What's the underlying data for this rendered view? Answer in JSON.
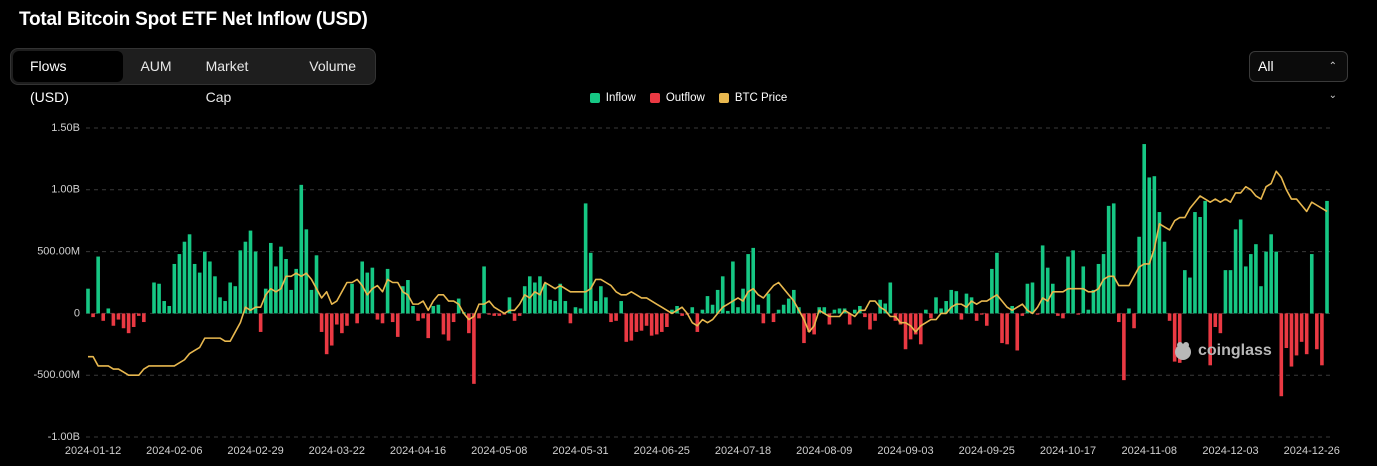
{
  "chart_data": {
    "type": "bar",
    "title": "Total Bitcoin Spot ETF Net Inflow (USD)",
    "categories": [
      null,
      "2024-01-12",
      null,
      null,
      null,
      null,
      null,
      null,
      null,
      null,
      null,
      null,
      null,
      null,
      null,
      null,
      null,
      "2024-02-06",
      null,
      null,
      null,
      null,
      null,
      null,
      null,
      null,
      null,
      null,
      null,
      null,
      null,
      null,
      null,
      "2024-02-29",
      null,
      null,
      null,
      null,
      null,
      null,
      null,
      null,
      null,
      null,
      null,
      null,
      null,
      null,
      null,
      "2024-03-22",
      null,
      null,
      null,
      null,
      null,
      null,
      null,
      null,
      null,
      null,
      null,
      null,
      null,
      null,
      null,
      "2024-04-16",
      null,
      null,
      null,
      null,
      null,
      null,
      null,
      null,
      null,
      null,
      null,
      null,
      null,
      null,
      null,
      "2024-05-08",
      null,
      null,
      null,
      null,
      null,
      null,
      null,
      null,
      null,
      null,
      null,
      null,
      null,
      null,
      null,
      "2024-05-31",
      null,
      null,
      null,
      null,
      null,
      null,
      null,
      null,
      null,
      null,
      null,
      null,
      null,
      null,
      null,
      "2024-06-25",
      null,
      null,
      null,
      null,
      null,
      null,
      null,
      null,
      null,
      null,
      null,
      null,
      null,
      null,
      null,
      "2024-07-18",
      null,
      null,
      null,
      null,
      null,
      null,
      null,
      null,
      null,
      null,
      null,
      null,
      null,
      null,
      null,
      "2024-08-09",
      null,
      null,
      null,
      null,
      null,
      null,
      null,
      null,
      null,
      null,
      null,
      null,
      null,
      null,
      null,
      "2024-09-03",
      null,
      null,
      null,
      null,
      null,
      null,
      null,
      null,
      null,
      null,
      null,
      null,
      null,
      null,
      null,
      "2024-09-25",
      null,
      null,
      null,
      null,
      null,
      null,
      null,
      null,
      null,
      null,
      null,
      null,
      null,
      null,
      null,
      "2024-10-17",
      null,
      null,
      null,
      null,
      null,
      null,
      null,
      null,
      null,
      null,
      null,
      null,
      null,
      null,
      null,
      "2024-11-08",
      null,
      null,
      null,
      null,
      null,
      null,
      null,
      null,
      null,
      null,
      null,
      null,
      null,
      null,
      null,
      "2024-12-03",
      null,
      null,
      null,
      null,
      null,
      null,
      null,
      null,
      null,
      null,
      null,
      null,
      null,
      null,
      null,
      "2024-12-26",
      null,
      null,
      null
    ],
    "series": [
      {
        "name": "Inflow",
        "type": "bar",
        "color": "#16c784",
        "values": [
          200000000.0,
          null,
          460000000.0,
          null,
          40000000.0,
          null,
          null,
          null,
          null,
          null,
          null,
          null,
          0,
          250000000.0,
          240000000.0,
          100000000.0,
          60000000.0,
          400000000.0,
          480000000.0,
          580000000.0,
          640000000.0,
          400000000.0,
          330000000.0,
          500000000.0,
          420000000.0,
          300000000.0,
          130000000.0,
          100000000.0,
          250000000.0,
          220000000.0,
          510000000.0,
          580000000.0,
          670000000.0,
          500000000.0,
          null,
          200000000.0,
          570000000.0,
          380000000.0,
          540000000.0,
          440000000.0,
          190000000.0,
          360000000.0,
          1040000000.0,
          680000000.0,
          190000000.0,
          470000000.0,
          null,
          null,
          null,
          null,
          null,
          null,
          240000000.0,
          null,
          420000000.0,
          330000000.0,
          370000000.0,
          null,
          null,
          360000000.0,
          null,
          null,
          220000000.0,
          270000000.0,
          60000000.0,
          null,
          null,
          null,
          60000000.0,
          70000000.0,
          null,
          null,
          null,
          120000000.0,
          10000000.0,
          null,
          null,
          null,
          380000000.0,
          null,
          null,
          null,
          null,
          130000000.0,
          null,
          null,
          220000000.0,
          300000000.0,
          250000000.0,
          300000000.0,
          240000000.0,
          110000000.0,
          100000000.0,
          240000000.0,
          100000000.0,
          null,
          50000000.0,
          40000000.0,
          890000000.0,
          490000000.0,
          100000000.0,
          220000000.0,
          130000000.0,
          null,
          null,
          100000000.0,
          null,
          null,
          null,
          null,
          null,
          null,
          null,
          null,
          null,
          30000000.0,
          60000000.0,
          null,
          null,
          50000000.0,
          null,
          30000000.0,
          140000000.0,
          70000000.0,
          190000000.0,
          300000000.0,
          20000000.0,
          420000000.0,
          50000000.0,
          200000000.0,
          480000000.0,
          530000000.0,
          70000000.0,
          null,
          160000000.0,
          null,
          30000000.0,
          70000000.0,
          120000000.0,
          190000000.0,
          50000000.0,
          null,
          null,
          null,
          50000000.0,
          50000000.0,
          null,
          30000000.0,
          40000000.0,
          40000000.0,
          null,
          30000000.0,
          60000000.0,
          null,
          null,
          null,
          110000000.0,
          80000000.0,
          250000000.0,
          null,
          null,
          null,
          null,
          null,
          null,
          30000000.0,
          null,
          130000000.0,
          40000000.0,
          100000000.0,
          190000000.0,
          180000000.0,
          null,
          160000000.0,
          130000000.0,
          null,
          null,
          null,
          360000000.0,
          490000000.0,
          null,
          null,
          60000000.0,
          null,
          null,
          240000000.0,
          250000000.0,
          null,
          550000000.0,
          370000000.0,
          240000000.0,
          null,
          null,
          460000000.0,
          510000000.0,
          null,
          380000000.0,
          30000000.0,
          190000000.0,
          400000000.0,
          480000000.0,
          870000000.0,
          890000000.0,
          null,
          null,
          40000000.0,
          null,
          620000000.0,
          1370000000.0,
          1100000000.0,
          1110000000.0,
          820000000.0,
          580000000.0,
          null,
          null,
          null,
          350000000.0,
          290000000.0,
          820000000.0,
          780000000.0,
          910000000.0,
          null,
          null,
          null,
          350000000.0,
          350000000.0,
          680000000.0,
          760000000.0,
          380000000.0,
          480000000.0,
          560000000.0,
          220000000.0,
          500000000.0,
          640000000.0,
          500000000.0,
          null,
          null,
          null,
          null,
          null,
          null,
          480000000.0,
          null,
          null,
          910000000.0
        ]
      },
      {
        "name": "Outflow",
        "type": "bar",
        "color": "#ea3943",
        "values": [
          null,
          -30000000.0,
          null,
          -60000000.0,
          null,
          -100000000.0,
          -50000000.0,
          -120000000.0,
          -160000000.0,
          -110000000.0,
          -20000000.0,
          -70000000.0,
          null,
          null,
          null,
          null,
          null,
          null,
          null,
          null,
          null,
          null,
          null,
          null,
          null,
          null,
          null,
          null,
          null,
          null,
          null,
          null,
          null,
          null,
          -150000000.0,
          null,
          null,
          null,
          null,
          null,
          null,
          null,
          null,
          null,
          null,
          null,
          -150000000.0,
          -330000000.0,
          -260000000.0,
          -90000000.0,
          -160000000.0,
          -100000000.0,
          null,
          -80000000.0,
          null,
          null,
          null,
          -50000000.0,
          -80000000.0,
          null,
          -70000000.0,
          -190000000.0,
          null,
          null,
          null,
          -60000000.0,
          -40000000.0,
          -200000000.0,
          null,
          null,
          -170000000.0,
          -220000000.0,
          -70000000.0,
          null,
          null,
          -160000000.0,
          -570000000.0,
          -40000000.0,
          null,
          -10000000.0,
          -20000000.0,
          -20000000.0,
          -10000000.0,
          null,
          -60000000.0,
          -20000000.0,
          null,
          null,
          null,
          null,
          null,
          null,
          null,
          null,
          null,
          -80000000.0,
          null,
          null,
          null,
          null,
          null,
          null,
          null,
          -70000000.0,
          -60000000.0,
          null,
          -230000000.0,
          -220000000.0,
          -150000000.0,
          -140000000.0,
          -100000000.0,
          -180000000.0,
          -170000000.0,
          -150000000.0,
          -110000000.0,
          null,
          null,
          -20000000.0,
          -10000000.0,
          null,
          -150000000.0,
          null,
          null,
          null,
          null,
          null,
          null,
          null,
          null,
          null,
          null,
          null,
          null,
          -80000000.0,
          null,
          -70000000.0,
          null,
          null,
          null,
          null,
          null,
          -240000000.0,
          -150000000.0,
          -170000000.0,
          null,
          null,
          -90000000.0,
          null,
          null,
          null,
          -90000000.0,
          null,
          null,
          -30000000.0,
          -130000000.0,
          -60000000.0,
          null,
          null,
          null,
          -60000000.0,
          -90000000.0,
          -290000000.0,
          -210000000.0,
          -170000000.0,
          -250000000.0,
          null,
          -40000000.0,
          null,
          null,
          null,
          null,
          null,
          -50000000.0,
          null,
          null,
          -60000000.0,
          -10000000.0,
          -100000000.0,
          null,
          null,
          -240000000.0,
          -250000000.0,
          null,
          -300000000.0,
          -20000000.0,
          null,
          null,
          -10000000.0,
          null,
          null,
          null,
          -20000000.0,
          -40000000.0,
          null,
          null,
          -10000000.0,
          null,
          null,
          null,
          null,
          null,
          null,
          null,
          -70000000.0,
          -540000000.0,
          null,
          -120000000.0,
          null,
          null,
          null,
          null,
          null,
          null,
          -60000000.0,
          -390000000.0,
          -400000000.0,
          null,
          null,
          null,
          null,
          null,
          -420000000.0,
          -110000000.0,
          -160000000.0,
          null,
          null,
          null,
          null,
          null,
          null,
          null,
          null,
          null,
          null,
          null,
          -670000000.0,
          -280000000.0,
          -430000000.0,
          -340000000.0,
          -230000000.0,
          -330000000.0,
          null,
          -290000000.0,
          -420000000.0,
          null
        ]
      },
      {
        "name": "BTC Price",
        "type": "line",
        "axis": "y2",
        "color": "#e8b84f",
        "values": [
          46000.0,
          46000.0,
          43000.0,
          43000.0,
          43000.0,
          42000.0,
          42000.0,
          41000.0,
          40000.0,
          40000.0,
          40000.0,
          42000.0,
          43000.0,
          43000.0,
          43000.0,
          43000.0,
          43000.0,
          43000.0,
          44000.0,
          45000.0,
          47000.0,
          48000.0,
          49000.0,
          52000.0,
          52000.0,
          52000.0,
          52000.0,
          51000.0,
          51000.0,
          54000.0,
          57000.0,
          62000.0,
          61000.0,
          62000.0,
          62000.0,
          66000.0,
          68000.0,
          67000.0,
          68000.0,
          72000.0,
          72000.0,
          73000.0,
          72000.0,
          73000.0,
          71000.0,
          68000.0,
          65000.0,
          67000.0,
          63000.0,
          64000.0,
          67000.0,
          70000.0,
          70000.0,
          71000.0,
          69000.0,
          66000.0,
          68000.0,
          69000.0,
          67000.0,
          71000.0,
          70000.0,
          70000.0,
          67000.0,
          66000.0,
          63000.0,
          63000.0,
          64000.0,
          61000.0,
          64000.0,
          66000.0,
          66000.0,
          64000.0,
          64000.0,
          63000.0,
          60000.0,
          58000.0,
          59000.0,
          63000.0,
          63000.0,
          64000.0,
          62000.0,
          61000.0,
          60000.0,
          61000.0,
          61000.0,
          63000.0,
          66000.0,
          65000.0,
          67000.0,
          66000.0,
          70000.0,
          69000.0,
          68000.0,
          69000.0,
          68000.0,
          67000.0,
          67000.0,
          67000.0,
          67000.0,
          68000.0,
          71000.0,
          71000.0,
          70000.0,
          69000.0,
          67000.0,
          66000.0,
          66000.0,
          67000.0,
          66000.0,
          65000.0,
          65000.0,
          64000.0,
          63000.0,
          62000.0,
          61000.0,
          60000.0,
          61000.0,
          62000.0,
          60000.0,
          57000.0,
          56000.0,
          58000.0,
          57000.0,
          58000.0,
          60000.0,
          62000.0,
          63000.0,
          64000.0,
          65000.0,
          64000.0,
          67000.0,
          68000.0,
          66000.0,
          65000.0,
          67000.0,
          69000.0,
          70000.0,
          68000.0,
          66000.0,
          64000.0,
          61000.0,
          58000.0,
          54000.0,
          56000.0,
          61000.0,
          60000.0,
          59000.0,
          59000.0,
          59000.0,
          61000.0,
          60000.0,
          59000.0,
          61000.0,
          61000.0,
          64000.0,
          64000.0,
          62000.0,
          61000.0,
          59000.0,
          59000.0,
          57000.0,
          57000.0,
          56000.0,
          54000.0,
          56000.0,
          57000.0,
          58000.0,
          58000.0,
          60000.0,
          60000.0,
          62000.0,
          63000.0,
          63000.0,
          62000.0,
          64000.0,
          63000.0,
          64000.0,
          64000.0,
          65000.0,
          66000.0,
          64000.0,
          62000.0,
          61000.0,
          62000.0,
          63000.0,
          61000.0,
          60000.0,
          62000.0,
          65000.0,
          64000.0,
          67000.0,
          67000.0,
          67000.0,
          68000.0,
          68000.0,
          68000.0,
          68000.0,
          67000.0,
          67000.0,
          68000.0,
          71000.0,
          72000.0,
          72000.0,
          69000.0,
          69000.0,
          69000.0,
          72000.0,
          75000.0,
          76000.0,
          76000.0,
          81000.0,
          89000.0,
          88000.0,
          87000.0,
          90000.0,
          91000.0,
          91000.0,
          94000.0,
          96000.0,
          98000.0,
          97000.0,
          96000.0,
          97000.0,
          96000.0,
          97000.0,
          96000.0,
          99000.0,
          99000.0,
          101000.0,
          100000.0,
          98000.0,
          97000.0,
          101000.0,
          102000.0,
          106000.0,
          104000.0,
          100000.0,
          97000.0,
          97000.0,
          95000.0,
          93000.0,
          96000.0,
          95000.0,
          94000.0,
          93000.0
        ]
      }
    ],
    "ylim": [
      -1000000000,
      1500000000
    ],
    "yticks": [
      {
        "value": 1500000000,
        "label": "1.50B"
      },
      {
        "value": 1000000000,
        "label": "1.00B"
      },
      {
        "value": 500000000,
        "label": "500.00M"
      },
      0,
      {
        "value": -500000000,
        "label": "-500.00M"
      },
      {
        "value": -1000000000,
        "label": "-1.00B"
      }
    ],
    "y2lim": [
      20000,
      120000
    ],
    "grid": true
  },
  "ui": {
    "tabs": [
      "Flows (USD)",
      "AUM",
      "Market Cap",
      "Volume"
    ],
    "range_select": "All",
    "watermark": "coinglass"
  }
}
